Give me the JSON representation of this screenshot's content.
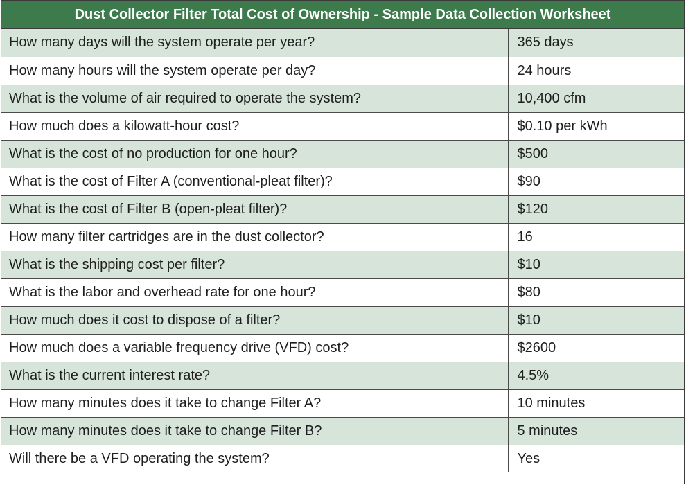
{
  "title": "Dust Collector Filter Total Cost of Ownership - Sample Data Collection Worksheet",
  "colors": {
    "header_bg": "#3d7a4c",
    "header_text": "#ffffff",
    "shaded_row": "#d6e4d9",
    "plain_row": "#ffffff",
    "border": "#4a4a4a"
  },
  "rows": [
    {
      "question": "How many days will the system operate per year?",
      "answer": "365 days"
    },
    {
      "question": "How many hours will the system operate per day?",
      "answer": "24 hours"
    },
    {
      "question": "What is the volume of air required to operate the system?",
      "answer": "10,400 cfm"
    },
    {
      "question": "How much does a kilowatt-hour cost?",
      "answer": "$0.10 per kWh"
    },
    {
      "question": "What is the cost of no production for one hour?",
      "answer": "$500"
    },
    {
      "question": "What is the cost of Filter A (conventional-pleat filter)?",
      "answer": "$90"
    },
    {
      "question": "What is the cost of Filter B (open-pleat filter)?",
      "answer": "$120"
    },
    {
      "question": "How many filter cartridges are in the dust collector?",
      "answer": "16"
    },
    {
      "question": "What is the shipping cost per filter?",
      "answer": "$10"
    },
    {
      "question": "What is the labor and overhead rate for one hour?",
      "answer": "$80"
    },
    {
      "question": "How much does it cost to dispose of a filter?",
      "answer": "$10"
    },
    {
      "question": "How much does a variable frequency drive (VFD) cost?",
      "answer": "$2600"
    },
    {
      "question": "What is the current interest rate?",
      "answer": "4.5%"
    },
    {
      "question": "How many minutes does it take to change Filter A?",
      "answer": "10 minutes"
    },
    {
      "question": "How many minutes does it take to change Filter B?",
      "answer": "5 minutes"
    },
    {
      "question": "Will there be a VFD operating the system?",
      "answer": "Yes"
    }
  ]
}
